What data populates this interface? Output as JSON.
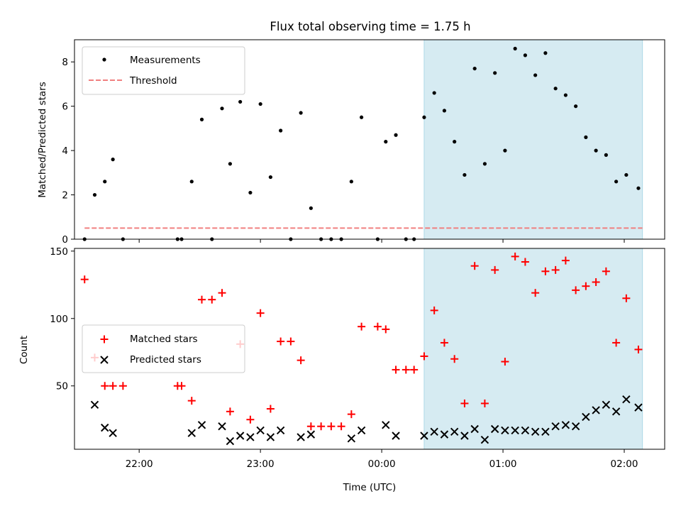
{
  "title": "Flux total observing time = 1.75 h",
  "colors": {
    "measurement": "#000000",
    "threshold": "#f08080",
    "matched": "#ff0000",
    "predicted": "#000000",
    "shade": "#add8e6"
  },
  "chart_data": [
    {
      "type": "scatter",
      "ylabel": "Matched/Predicted stars",
      "ylim": [
        0,
        9
      ],
      "yticks": [
        0,
        2,
        4,
        6,
        8
      ],
      "xlim": [
        "21:28",
        "02:20"
      ],
      "shaded_region": [
        "00:21",
        "02:09"
      ],
      "legend_position": "upper left",
      "series": [
        {
          "name": "Measurements",
          "marker": "dot",
          "points": [
            [
              "21:33",
              0
            ],
            [
              "21:38",
              2.0
            ],
            [
              "21:43",
              2.6
            ],
            [
              "21:47",
              3.6
            ],
            [
              "21:52",
              0
            ],
            [
              "22:19",
              0
            ],
            [
              "22:21",
              0
            ],
            [
              "22:26",
              2.6
            ],
            [
              "22:31",
              5.4
            ],
            [
              "22:36",
              0
            ],
            [
              "22:41",
              5.9
            ],
            [
              "22:45",
              3.4
            ],
            [
              "22:50",
              6.2
            ],
            [
              "22:55",
              2.1
            ],
            [
              "23:00",
              6.1
            ],
            [
              "23:05",
              2.8
            ],
            [
              "23:10",
              4.9
            ],
            [
              "23:15",
              0
            ],
            [
              "23:20",
              5.7
            ],
            [
              "23:25",
              1.4
            ],
            [
              "23:30",
              0
            ],
            [
              "23:35",
              0
            ],
            [
              "23:40",
              0
            ],
            [
              "23:45",
              2.6
            ],
            [
              "23:50",
              5.5
            ],
            [
              "23:58",
              0
            ],
            [
              "00:02",
              4.4
            ],
            [
              "00:07",
              4.7
            ],
            [
              "00:12",
              0
            ],
            [
              "00:16",
              0
            ],
            [
              "00:21",
              5.5
            ],
            [
              "00:26",
              6.6
            ],
            [
              "00:31",
              5.8
            ],
            [
              "00:36",
              4.4
            ],
            [
              "00:41",
              2.9
            ],
            [
              "00:46",
              7.7
            ],
            [
              "00:51",
              3.4
            ],
            [
              "00:56",
              7.5
            ],
            [
              "01:01",
              4.0
            ],
            [
              "01:06",
              8.6
            ],
            [
              "01:11",
              8.3
            ],
            [
              "01:16",
              7.4
            ],
            [
              "01:21",
              8.4
            ],
            [
              "01:26",
              6.8
            ],
            [
              "01:31",
              6.5
            ],
            [
              "01:36",
              6.0
            ],
            [
              "01:41",
              4.6
            ],
            [
              "01:46",
              4.0
            ],
            [
              "01:51",
              3.8
            ],
            [
              "01:56",
              2.6
            ],
            [
              "02:01",
              2.9
            ],
            [
              "02:07",
              2.3
            ]
          ]
        },
        {
          "name": "Threshold",
          "style": "dashed",
          "points": [
            [
              "21:33",
              0.5
            ],
            [
              "02:09",
              0.5
            ]
          ]
        }
      ]
    },
    {
      "type": "scatter",
      "xlabel": "Time (UTC)",
      "ylabel": "Count",
      "ylim": [
        3,
        152
      ],
      "yticks": [
        50,
        100,
        150
      ],
      "xticks": [
        "22:00",
        "23:00",
        "00:00",
        "01:00",
        "02:00"
      ],
      "xlim": [
        "21:28",
        "02:20"
      ],
      "shaded_region": [
        "00:21",
        "02:09"
      ],
      "legend_position": "center left",
      "series": [
        {
          "name": "Matched stars",
          "marker": "plus",
          "points": [
            [
              "21:33",
              129
            ],
            [
              "21:38",
              71
            ],
            [
              "21:43",
              50
            ],
            [
              "21:47",
              50
            ],
            [
              "21:52",
              50
            ],
            [
              "22:19",
              50
            ],
            [
              "22:21",
              50
            ],
            [
              "22:26",
              39
            ],
            [
              "22:31",
              114
            ],
            [
              "22:36",
              114
            ],
            [
              "22:41",
              119
            ],
            [
              "22:45",
              31
            ],
            [
              "22:50",
              81
            ],
            [
              "22:55",
              25
            ],
            [
              "23:00",
              104
            ],
            [
              "23:05",
              33
            ],
            [
              "23:10",
              83
            ],
            [
              "23:15",
              83
            ],
            [
              "23:20",
              69
            ],
            [
              "23:25",
              20
            ],
            [
              "23:30",
              20
            ],
            [
              "23:35",
              20
            ],
            [
              "23:40",
              20
            ],
            [
              "23:45",
              29
            ],
            [
              "23:50",
              94
            ],
            [
              "23:58",
              94
            ],
            [
              "00:02",
              92
            ],
            [
              "00:07",
              62
            ],
            [
              "00:12",
              62
            ],
            [
              "00:16",
              62
            ],
            [
              "00:21",
              72
            ],
            [
              "00:26",
              106
            ],
            [
              "00:31",
              82
            ],
            [
              "00:36",
              70
            ],
            [
              "00:41",
              37
            ],
            [
              "00:46",
              139
            ],
            [
              "00:51",
              37
            ],
            [
              "00:56",
              136
            ],
            [
              "01:01",
              68
            ],
            [
              "01:06",
              146
            ],
            [
              "01:11",
              142
            ],
            [
              "01:16",
              119
            ],
            [
              "01:21",
              135
            ],
            [
              "01:26",
              136
            ],
            [
              "01:31",
              143
            ],
            [
              "01:36",
              121
            ],
            [
              "01:41",
              124
            ],
            [
              "01:46",
              127
            ],
            [
              "01:51",
              135
            ],
            [
              "01:56",
              82
            ],
            [
              "02:01",
              115
            ],
            [
              "02:07",
              77
            ]
          ]
        },
        {
          "name": "Predicted stars",
          "marker": "x",
          "points": [
            [
              "21:38",
              36
            ],
            [
              "21:43",
              19
            ],
            [
              "21:47",
              15
            ],
            [
              "22:26",
              15
            ],
            [
              "22:31",
              21
            ],
            [
              "22:41",
              20
            ],
            [
              "22:45",
              9
            ],
            [
              "22:50",
              13
            ],
            [
              "22:55",
              12
            ],
            [
              "23:00",
              17
            ],
            [
              "23:05",
              12
            ],
            [
              "23:10",
              17
            ],
            [
              "23:20",
              12
            ],
            [
              "23:25",
              14
            ],
            [
              "23:45",
              11
            ],
            [
              "23:50",
              17
            ],
            [
              "00:02",
              21
            ],
            [
              "00:07",
              13
            ],
            [
              "00:21",
              13
            ],
            [
              "00:26",
              16
            ],
            [
              "00:31",
              14
            ],
            [
              "00:36",
              16
            ],
            [
              "00:41",
              13
            ],
            [
              "00:46",
              18
            ],
            [
              "00:51",
              10
            ],
            [
              "00:56",
              18
            ],
            [
              "01:01",
              17
            ],
            [
              "01:06",
              17
            ],
            [
              "01:11",
              17
            ],
            [
              "01:16",
              16
            ],
            [
              "01:21",
              16
            ],
            [
              "01:26",
              20
            ],
            [
              "01:31",
              21
            ],
            [
              "01:36",
              20
            ],
            [
              "01:41",
              27
            ],
            [
              "01:46",
              32
            ],
            [
              "01:51",
              36
            ],
            [
              "01:56",
              31
            ],
            [
              "02:01",
              40
            ],
            [
              "02:07",
              34
            ]
          ]
        }
      ]
    }
  ]
}
